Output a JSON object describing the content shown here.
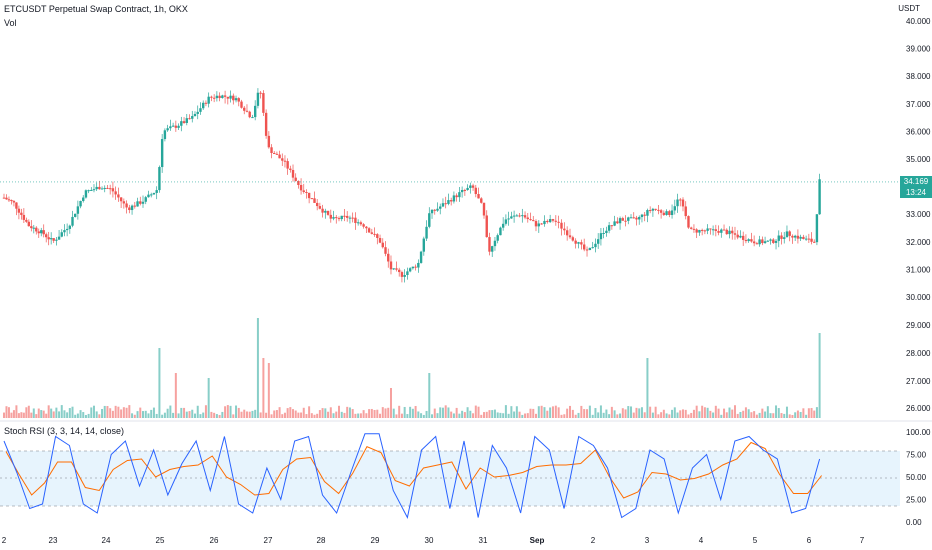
{
  "header": {
    "title": "ETCUSDT Perpetual Swap Contract, 1h, OKX",
    "volume_label": "Vol",
    "currency": "USDT"
  },
  "price_tag": {
    "price": "34.169",
    "countdown": "13:24"
  },
  "colors": {
    "up": "#26a69a",
    "down": "#ef5350",
    "stoch_k": "#2962ff",
    "stoch_d": "#ff6d00",
    "band_fill": "#e3f2fd"
  },
  "chart_data": [
    {
      "type": "candlestick",
      "title": "ETCUSDT Perpetual Swap Contract, 1h, OKX",
      "y_unit": "USDT",
      "ylim": [
        29.7,
        40.1
      ],
      "price_ticks": [
        "40.000",
        "39.000",
        "38.000",
        "37.000",
        "36.000",
        "35.000",
        "33.000",
        "32.000",
        "31.000",
        "30.000"
      ],
      "volume_ticks": [
        "29.000",
        "28.000",
        "27.000",
        "26.000"
      ],
      "x_labels": [
        "2",
        "23",
        "24",
        "25",
        "26",
        "27",
        "28",
        "29",
        "30",
        "31",
        "Sep",
        "2",
        "3",
        "4",
        "5",
        "6",
        "7"
      ],
      "last_price": 34.169,
      "close_points": [
        [
          22.0,
          33.6
        ],
        [
          22.2,
          33.4
        ],
        [
          22.5,
          32.6
        ],
        [
          22.8,
          32.3
        ],
        [
          23.0,
          32.0
        ],
        [
          23.3,
          32.6
        ],
        [
          23.6,
          33.8
        ],
        [
          23.9,
          34.0
        ],
        [
          24.1,
          33.9
        ],
        [
          24.4,
          33.2
        ],
        [
          24.7,
          33.5
        ],
        [
          24.95,
          33.9
        ],
        [
          25.05,
          36.0
        ],
        [
          25.3,
          36.2
        ],
        [
          25.6,
          36.5
        ],
        [
          25.9,
          37.2
        ],
        [
          26.1,
          37.3
        ],
        [
          26.4,
          37.2
        ],
        [
          26.7,
          36.5
        ],
        [
          26.85,
          37.6
        ],
        [
          27.0,
          35.4
        ],
        [
          27.3,
          34.9
        ],
        [
          27.6,
          34.0
        ],
        [
          27.9,
          33.4
        ],
        [
          28.2,
          32.8
        ],
        [
          28.5,
          32.9
        ],
        [
          28.8,
          32.6
        ],
        [
          29.1,
          32.0
        ],
        [
          29.3,
          31.0
        ],
        [
          29.5,
          30.8
        ],
        [
          29.8,
          31.2
        ],
        [
          30.0,
          33.0
        ],
        [
          30.3,
          33.4
        ],
        [
          30.6,
          33.8
        ],
        [
          30.8,
          34.0
        ],
        [
          31.0,
          33.2
        ],
        [
          31.1,
          31.6
        ],
        [
          31.4,
          32.8
        ],
        [
          31.7,
          33.0
        ],
        [
          32.0,
          32.6
        ],
        [
          32.3,
          32.8
        ],
        [
          32.6,
          32.2
        ],
        [
          32.9,
          31.6
        ],
        [
          33.2,
          32.4
        ],
        [
          33.5,
          32.8
        ],
        [
          33.8,
          32.8
        ],
        [
          34.1,
          33.2
        ],
        [
          34.4,
          33.0
        ],
        [
          34.6,
          33.6
        ],
        [
          34.8,
          32.4
        ],
        [
          35.1,
          32.4
        ],
        [
          35.4,
          32.4
        ],
        [
          35.7,
          32.2
        ],
        [
          36.0,
          32.0
        ],
        [
          36.3,
          32.0
        ],
        [
          36.6,
          32.3
        ],
        [
          36.9,
          32.1
        ],
        [
          37.1,
          32.0
        ],
        [
          37.2,
          34.2
        ]
      ]
    },
    {
      "type": "bar",
      "title": "Vol",
      "note": "relative volume bars with spikes on 25, 26-27, Sep 3 and Sep 6"
    },
    {
      "type": "line",
      "title": "Stoch RSI (3, 3, 14, 14, close)",
      "ylim": [
        0,
        100
      ],
      "ticks": [
        "100.00",
        "75.00",
        "50.00",
        "25.00",
        "0.00"
      ],
      "bands": [
        80,
        50,
        20
      ],
      "series": [
        {
          "name": "K",
          "values": [
            90,
            55,
            15,
            20,
            95,
            85,
            20,
            10,
            75,
            90,
            40,
            80,
            30,
            65,
            90,
            35,
            95,
            20,
            10,
            60,
            25,
            90,
            95,
            30,
            10,
            55,
            98,
            98,
            35,
            5,
            80,
            95,
            15,
            90,
            5,
            85,
            60,
            10,
            95,
            80,
            15,
            95,
            85,
            60,
            5,
            15,
            80,
            70,
            10,
            60,
            75,
            25,
            90,
            95,
            80,
            70,
            10,
            15,
            70
          ]
        }
      ]
    }
  ]
}
